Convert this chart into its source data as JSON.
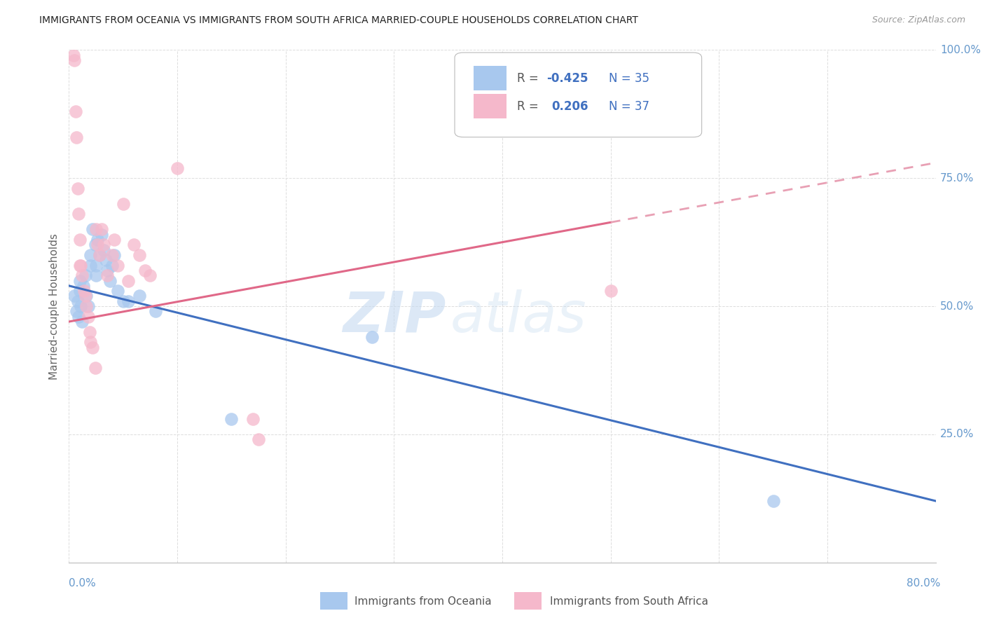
{
  "title": "IMMIGRANTS FROM OCEANIA VS IMMIGRANTS FROM SOUTH AFRICA MARRIED-COUPLE HOUSEHOLDS CORRELATION CHART",
  "source": "Source: ZipAtlas.com",
  "ylabel": "Married-couple Households",
  "xmin": 0.0,
  "xmax": 0.8,
  "ymin": 0.0,
  "ymax": 1.0,
  "oceania_R": -0.425,
  "oceania_N": 35,
  "sa_R": 0.206,
  "sa_N": 37,
  "oceania_color": "#a8c8ee",
  "sa_color": "#f5b8cb",
  "oceania_line_color": "#4070c0",
  "sa_line_color": "#e06888",
  "sa_line_dashed_color": "#e8a0b4",
  "watermark_zip": "ZIP",
  "watermark_atlas": "atlas",
  "oceania_x": [
    0.005,
    0.007,
    0.008,
    0.009,
    0.01,
    0.01,
    0.011,
    0.012,
    0.013,
    0.015,
    0.016,
    0.018,
    0.02,
    0.02,
    0.022,
    0.024,
    0.025,
    0.025,
    0.026,
    0.028,
    0.03,
    0.032,
    0.034,
    0.035,
    0.038,
    0.04,
    0.042,
    0.045,
    0.05,
    0.055,
    0.065,
    0.08,
    0.15,
    0.28,
    0.65
  ],
  "oceania_y": [
    0.52,
    0.49,
    0.51,
    0.48,
    0.55,
    0.53,
    0.5,
    0.47,
    0.54,
    0.56,
    0.52,
    0.5,
    0.6,
    0.58,
    0.65,
    0.62,
    0.58,
    0.56,
    0.63,
    0.6,
    0.64,
    0.61,
    0.59,
    0.57,
    0.55,
    0.58,
    0.6,
    0.53,
    0.51,
    0.51,
    0.52,
    0.49,
    0.28,
    0.44,
    0.12
  ],
  "sa_x": [
    0.004,
    0.005,
    0.006,
    0.007,
    0.008,
    0.009,
    0.01,
    0.01,
    0.011,
    0.012,
    0.014,
    0.015,
    0.016,
    0.018,
    0.019,
    0.02,
    0.022,
    0.024,
    0.025,
    0.026,
    0.028,
    0.03,
    0.032,
    0.035,
    0.04,
    0.042,
    0.045,
    0.05,
    0.055,
    0.06,
    0.065,
    0.07,
    0.075,
    0.1,
    0.17,
    0.175,
    0.5
  ],
  "sa_y": [
    0.99,
    0.98,
    0.88,
    0.83,
    0.73,
    0.68,
    0.63,
    0.58,
    0.58,
    0.56,
    0.53,
    0.52,
    0.5,
    0.48,
    0.45,
    0.43,
    0.42,
    0.38,
    0.65,
    0.62,
    0.6,
    0.65,
    0.62,
    0.56,
    0.6,
    0.63,
    0.58,
    0.7,
    0.55,
    0.62,
    0.6,
    0.57,
    0.56,
    0.77,
    0.28,
    0.24,
    0.53
  ],
  "background_color": "#ffffff",
  "grid_color": "#dddddd",
  "right_axis_color": "#6699cc",
  "bottom_label_color": "#6699cc"
}
